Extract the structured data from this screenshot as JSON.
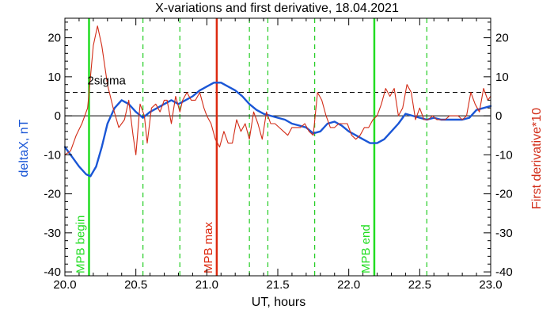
{
  "chart_data": {
    "type": "line",
    "title": "X-variations and first derivative, 18.04.2021",
    "xlabel": "UT, hours",
    "ylabel_left": "deltaX, nT",
    "ylabel_right": "First derivative*10",
    "xlim": [
      20.0,
      23.0
    ],
    "ylim": [
      -41,
      25
    ],
    "xticks": [
      20.0,
      20.5,
      21.0,
      21.5,
      22.0,
      22.5,
      23.0
    ],
    "xtick_labels": [
      "20.0",
      "20.5",
      "21.0",
      "21.5",
      "22.0",
      "22.5",
      "23.0"
    ],
    "yticks": [
      20,
      10,
      0,
      -10,
      -20,
      -30,
      -40
    ],
    "ytick_labels": [
      "20",
      "10",
      "0",
      "-10",
      "-20",
      "-30",
      "-40"
    ],
    "grid": false,
    "colors": {
      "deltax": "#1a56d6",
      "derivative": "#d22b16",
      "mpb_begin_end": "#22dd22",
      "mpb_max": "#dd2a10",
      "dashed_green": "#22cc22",
      "sigma_line": "#000000",
      "zero_line": "#000000"
    },
    "sigma": {
      "label": "2sigma",
      "value": 6
    },
    "markers": [
      {
        "label": "MPB begin",
        "x": 20.17,
        "color": "#22dd22"
      },
      {
        "label": "MPB max",
        "x": 21.07,
        "color": "#dd2a10"
      },
      {
        "label": "MPB end",
        "x": 22.18,
        "color": "#22dd22"
      }
    ],
    "dashed_lines_x": [
      20.55,
      20.81,
      21.3,
      21.43,
      21.76,
      22.55
    ],
    "series": [
      {
        "name": "deltaX, nT",
        "axis": "left",
        "x": [
          20.0,
          20.05,
          20.1,
          20.15,
          20.18,
          20.22,
          20.26,
          20.3,
          20.35,
          20.4,
          20.45,
          20.5,
          20.55,
          20.6,
          20.65,
          20.7,
          20.75,
          20.8,
          20.85,
          20.9,
          20.95,
          21.0,
          21.05,
          21.1,
          21.15,
          21.2,
          21.25,
          21.3,
          21.35,
          21.4,
          21.45,
          21.5,
          21.55,
          21.6,
          21.65,
          21.7,
          21.75,
          21.8,
          21.85,
          21.9,
          21.95,
          22.0,
          22.05,
          22.1,
          22.15,
          22.2,
          22.25,
          22.3,
          22.35,
          22.4,
          22.45,
          22.5,
          22.55,
          22.6,
          22.65,
          22.7,
          22.75,
          22.8,
          22.85,
          22.9,
          22.95,
          23.0
        ],
        "values": [
          -8,
          -10.5,
          -13,
          -15,
          -15.5,
          -13,
          -8,
          -2,
          2,
          4,
          3,
          1,
          -0.5,
          1,
          2,
          3,
          4,
          3,
          4,
          5,
          6.5,
          7.5,
          8.5,
          8.5,
          7.5,
          6.5,
          5,
          3,
          1.5,
          0.5,
          0,
          -0.5,
          -1,
          -2,
          -2.5,
          -3,
          -4.5,
          -4,
          -2,
          -1.5,
          -2.5,
          -4,
          -5,
          -6,
          -7,
          -7,
          -6,
          -4,
          -2,
          0.5,
          0,
          -0.5,
          -1,
          -0.5,
          -1,
          -1,
          -1,
          -1,
          -0.5,
          1.5,
          2,
          2.5
        ]
      },
      {
        "name": "First derivative*10",
        "axis": "right",
        "x": [
          20.0,
          20.04,
          20.08,
          20.12,
          20.16,
          20.18,
          20.2,
          20.23,
          20.26,
          20.3,
          20.34,
          20.38,
          20.42,
          20.45,
          20.48,
          20.5,
          20.53,
          20.56,
          20.58,
          20.61,
          20.64,
          20.67,
          20.7,
          20.72,
          20.75,
          20.78,
          20.81,
          20.83,
          20.86,
          20.89,
          20.92,
          20.95,
          20.98,
          21.0,
          21.03,
          21.06,
          21.09,
          21.12,
          21.15,
          21.18,
          21.21,
          21.24,
          21.27,
          21.3,
          21.33,
          21.36,
          21.39,
          21.42,
          21.45,
          21.48,
          21.51,
          21.54,
          21.57,
          21.6,
          21.63,
          21.66,
          21.69,
          21.72,
          21.75,
          21.78,
          21.81,
          21.84,
          21.87,
          21.9,
          21.93,
          21.96,
          21.99,
          22.02,
          22.05,
          22.08,
          22.11,
          22.14,
          22.17,
          22.2,
          22.23,
          22.26,
          22.29,
          22.32,
          22.35,
          22.38,
          22.41,
          22.44,
          22.47,
          22.5,
          22.53,
          22.56,
          22.59,
          22.62,
          22.65,
          22.68,
          22.71,
          22.74,
          22.77,
          22.8,
          22.83,
          22.86,
          22.89,
          22.92,
          22.95,
          22.98,
          23.0
        ],
        "values": [
          -10,
          -9,
          -5,
          -2,
          2,
          10,
          18,
          23,
          18,
          8,
          2,
          -3,
          -1,
          4,
          -5,
          -10,
          3,
          0,
          -7,
          2,
          3,
          1,
          4,
          4,
          -2,
          5,
          1,
          4,
          6,
          4,
          4,
          6,
          2,
          0,
          -2,
          -6,
          -8,
          -4,
          -7,
          -7,
          -1,
          -4,
          -2,
          -6,
          1,
          -2,
          -6,
          1,
          -2,
          -2,
          -3,
          -4,
          -5,
          -3,
          -3,
          -3,
          -2,
          -4,
          -5,
          6,
          4,
          0,
          -3,
          -3,
          -2,
          -2,
          -2,
          -5,
          -6,
          -5,
          -3,
          -3,
          -1,
          0,
          3,
          7,
          5,
          7,
          0,
          2,
          8,
          6,
          -1,
          2,
          -1,
          -1,
          0,
          -1,
          -1,
          -1,
          0,
          0,
          0,
          -1,
          0,
          6,
          3,
          1,
          7,
          4,
          5
        ]
      }
    ]
  }
}
